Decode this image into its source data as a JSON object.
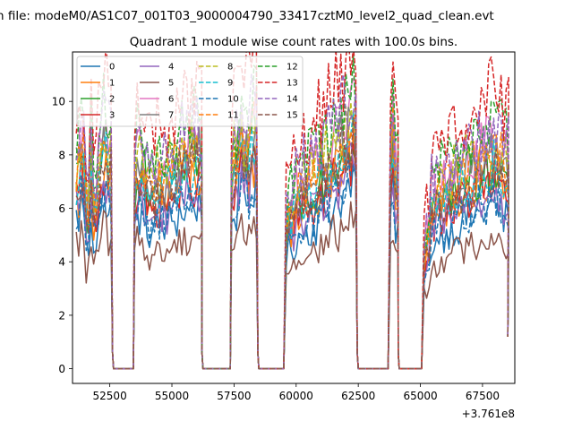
{
  "chart_data": {
    "type": "line",
    "suptitle": "n file: modeM0/AS1C07_001T03_9000004790_33417cztM0_level2_quad_clean.evt",
    "title": "Quadrant 1 module wise count rates with 100.0s bins.",
    "xlabel": "",
    "ylabel": "",
    "x_offset_label": "+3.761e8",
    "xlim": [
      51000,
      68800
    ],
    "ylim": [
      -0.55,
      11.85
    ],
    "xticks": [
      52500,
      55000,
      57500,
      60000,
      62500,
      65000,
      67500
    ],
    "xtick_labels": [
      "52500",
      "55000",
      "57500",
      "60000",
      "62500",
      "65000",
      "67500"
    ],
    "yticks": [
      0,
      2,
      4,
      6,
      8,
      10
    ],
    "ytick_labels": [
      "0",
      "2",
      "4",
      "6",
      "8",
      "10"
    ],
    "grid": false,
    "legend_location": "top-left",
    "legend_columns": 4,
    "segments": [
      {
        "start": 51150,
        "end": 52550,
        "zero_end": 53450
      },
      {
        "start": 53500,
        "end": 56150,
        "zero_end": 57300
      },
      {
        "start": 57400,
        "end": 58400,
        "zero_end": 59500
      },
      {
        "start": 59600,
        "end": 62400,
        "zero_end": 63700
      },
      {
        "start": 63800,
        "end": 64050,
        "zero_end": 65000
      },
      {
        "start": 65150,
        "end": 68500,
        "zero_end": null
      }
    ],
    "series": [
      {
        "name": "0",
        "color": "#1f77b4",
        "dash": "solid",
        "level": 5.6
      },
      {
        "name": "1",
        "color": "#ff7f0e",
        "dash": "solid",
        "level": 6.5
      },
      {
        "name": "2",
        "color": "#2ca02c",
        "dash": "solid",
        "level": 7.1
      },
      {
        "name": "3",
        "color": "#d62728",
        "dash": "solid",
        "level": 6.4
      },
      {
        "name": "4",
        "color": "#9467bd",
        "dash": "solid",
        "level": 6.1
      },
      {
        "name": "5",
        "color": "#8c564b",
        "dash": "solid",
        "level": 4.6
      },
      {
        "name": "6",
        "color": "#e377c2",
        "dash": "solid",
        "level": 7.9
      },
      {
        "name": "7",
        "color": "#7f7f7f",
        "dash": "solid",
        "level": 7.3
      },
      {
        "name": "8",
        "color": "#bcbd22",
        "dash": "dashed",
        "level": 7.8
      },
      {
        "name": "9",
        "color": "#17becf",
        "dash": "dashed",
        "level": 7.0
      },
      {
        "name": "10",
        "color": "#1f77b4",
        "dash": "dashed",
        "level": 5.9
      },
      {
        "name": "11",
        "color": "#ff7f0e",
        "dash": "dashed",
        "level": 7.4
      },
      {
        "name": "12",
        "color": "#2ca02c",
        "dash": "dashed",
        "level": 8.6
      },
      {
        "name": "13",
        "color": "#d62728",
        "dash": "dashed",
        "level": 9.6
      },
      {
        "name": "14",
        "color": "#9467bd",
        "dash": "dashed",
        "level": 8.4
      },
      {
        "name": "15",
        "color": "#8c564b",
        "dash": "dashed",
        "level": 6.9
      }
    ]
  }
}
